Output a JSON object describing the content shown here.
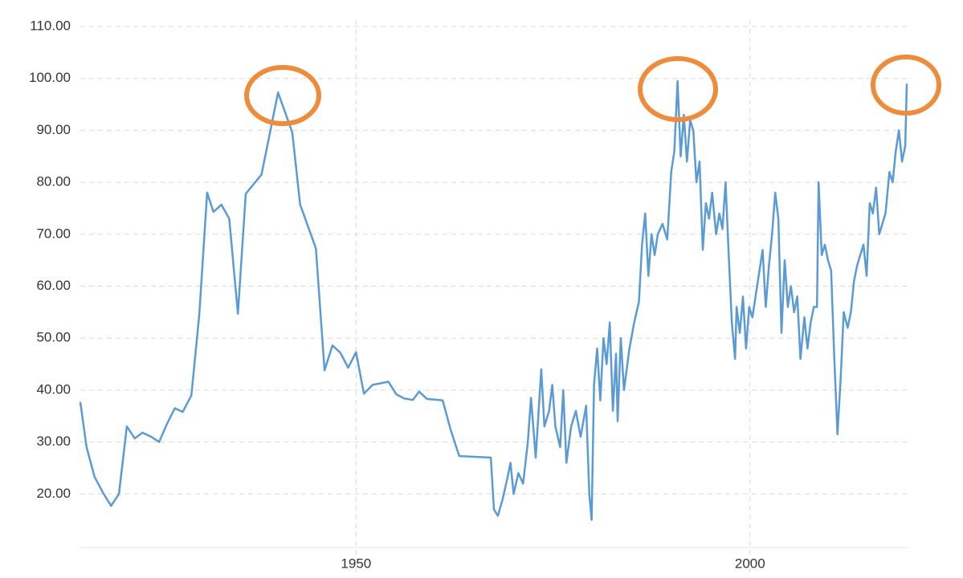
{
  "chart_data": {
    "type": "line",
    "x": [
      1915.0,
      1915.8,
      1916.8,
      1917.9,
      1918.9,
      1919.9,
      1920.9,
      1921.9,
      1922.9,
      1924.0,
      1925.0,
      1926.0,
      1927.0,
      1928.0,
      1929.1,
      1930.1,
      1931.1,
      1931.9,
      1932.9,
      1933.9,
      1935.0,
      1936.0,
      1938.0,
      1939.0,
      1940.1,
      1941.9,
      1942.9,
      1944.9,
      1946.0,
      1947.0,
      1948.0,
      1949.0,
      1950.0,
      1951.0,
      1952.1,
      1953.1,
      1954.1,
      1955.1,
      1956.1,
      1957.2,
      1958.0,
      1959.0,
      1961.0,
      1962.0,
      1963.1,
      1967.1,
      1967.5,
      1968.0,
      1968.6,
      1969.2,
      1969.6,
      1970.0,
      1970.6,
      1971.2,
      1971.8,
      1972.2,
      1972.8,
      1973.5,
      1973.9,
      1974.5,
      1974.9,
      1975.3,
      1975.9,
      1976.3,
      1976.7,
      1977.3,
      1977.9,
      1978.5,
      1979.2,
      1979.6,
      1979.9,
      1980.2,
      1980.6,
      1981.0,
      1981.4,
      1981.8,
      1982.2,
      1982.6,
      1983.0,
      1983.2,
      1983.6,
      1984.0,
      1984.7,
      1985.3,
      1985.9,
      1986.3,
      1986.7,
      1987.1,
      1987.5,
      1987.9,
      1988.3,
      1988.9,
      1989.5,
      1990.0,
      1990.4,
      1990.8,
      1991.2,
      1991.6,
      1992.0,
      1992.4,
      1992.8,
      1993.2,
      1993.6,
      1994.0,
      1994.4,
      1994.8,
      1995.2,
      1995.7,
      1996.1,
      1996.5,
      1996.9,
      1997.3,
      1997.7,
      1998.1,
      1998.3,
      1998.7,
      1999.1,
      1999.5,
      1999.9,
      2000.3,
      2000.7,
      2001.2,
      2001.6,
      2002.0,
      2002.4,
      2002.8,
      2003.2,
      2003.6,
      2004.0,
      2004.4,
      2004.8,
      2005.2,
      2005.6,
      2006.0,
      2006.4,
      2006.9,
      2007.3,
      2007.7,
      2008.1,
      2008.5,
      2008.7,
      2009.1,
      2009.5,
      2009.9,
      2010.3,
      2010.7,
      2011.1,
      2011.5,
      2011.9,
      2012.4,
      2012.8,
      2013.2,
      2013.6,
      2014.0,
      2014.4,
      2014.8,
      2015.2,
      2015.6,
      2016.0,
      2016.4,
      2016.8,
      2017.2,
      2017.7,
      2018.1,
      2018.5,
      2018.9,
      2019.3,
      2019.7,
      2019.9
    ],
    "series": [
      {
        "color": "#5b9bd5",
        "values": [
          37.7,
          29,
          23.3,
          20.2,
          17.7,
          20,
          33,
          30.7,
          31.8,
          31,
          30,
          33.5,
          36.5,
          35.8,
          39,
          54.5,
          78,
          74.3,
          75.7,
          73,
          54.7,
          77.8,
          81.5,
          89,
          97.3,
          89.6,
          75.7,
          67.3,
          43.8,
          48.6,
          47.2,
          44.3,
          47.3,
          39.3,
          41,
          41.3,
          41.6,
          39.2,
          38.4,
          38.1,
          39.7,
          38.3,
          38,
          32.4,
          27.3,
          27,
          17,
          15.8,
          19,
          23,
          26,
          20,
          24,
          22,
          30,
          38.5,
          27,
          44,
          33,
          36,
          41,
          33,
          29,
          40,
          26,
          33,
          36,
          31,
          37,
          20,
          15,
          41,
          48,
          38,
          50,
          45,
          53,
          36,
          47,
          34,
          50,
          40,
          48,
          53,
          57,
          68,
          74,
          62,
          70,
          66,
          70,
          72,
          69,
          82,
          86,
          99.5,
          85,
          93,
          84,
          92,
          90,
          80,
          84,
          67,
          76,
          73,
          78,
          70,
          74,
          71,
          80,
          66,
          53,
          46,
          56,
          51,
          58,
          48,
          56,
          54,
          58,
          63,
          67,
          56,
          64,
          70,
          78,
          73,
          51,
          65,
          56,
          60,
          55,
          58,
          46,
          54,
          48,
          53,
          56,
          56,
          80,
          66,
          68,
          65,
          63,
          46,
          31.5,
          42,
          55,
          52,
          55,
          61,
          64,
          66,
          68,
          62,
          76,
          74,
          79,
          70,
          72,
          74,
          82,
          80,
          86,
          90,
          84,
          87,
          99
        ]
      }
    ],
    "xlim": [
      1915,
      2020
    ],
    "xticks": [
      1950,
      2000
    ],
    "ylim": [
      10,
      110
    ],
    "yticks": [
      {
        "value": 20,
        "label": "20.00"
      },
      {
        "value": 30,
        "label": "30.00"
      },
      {
        "value": 40,
        "label": "40.00"
      },
      {
        "value": 50,
        "label": "50.00"
      },
      {
        "value": 60,
        "label": "60.00"
      },
      {
        "value": 70,
        "label": "70.00"
      },
      {
        "value": 80,
        "label": "80.00"
      },
      {
        "value": 90,
        "label": "90.00"
      },
      {
        "value": 100,
        "label": "100.00"
      },
      {
        "value": 110,
        "label": "110.00"
      }
    ],
    "grid": true
  }
}
